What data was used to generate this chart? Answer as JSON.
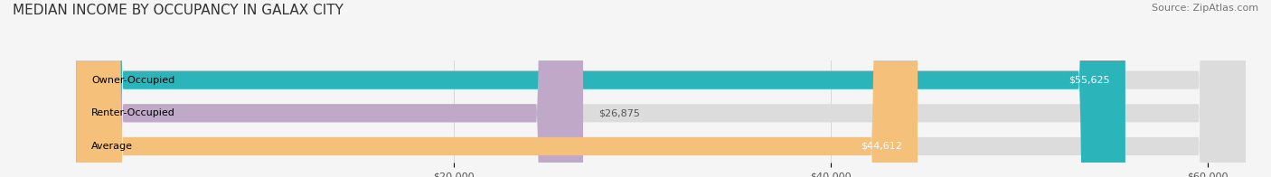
{
  "title": "MEDIAN INCOME BY OCCUPANCY IN GALAX CITY",
  "source": "Source: ZipAtlas.com",
  "categories": [
    "Owner-Occupied",
    "Renter-Occupied",
    "Average"
  ],
  "values": [
    55625,
    26875,
    44612
  ],
  "labels": [
    "$55,625",
    "$26,875",
    "$44,612"
  ],
  "bar_colors": [
    "#2bb5bb",
    "#c0a8c8",
    "#f5c07a"
  ],
  "bar_bg_color": "#dcdcdc",
  "xlim": [
    0,
    62000
  ],
  "xticks": [
    0,
    20000,
    40000,
    60000
  ],
  "xtick_labels": [
    "$20,000",
    "$40,000",
    "$60,000"
  ],
  "title_fontsize": 11,
  "source_fontsize": 8,
  "label_fontsize": 8,
  "bar_label_fontsize": 8,
  "bar_height": 0.55,
  "figsize": [
    14.06,
    1.96
  ],
  "dpi": 100
}
